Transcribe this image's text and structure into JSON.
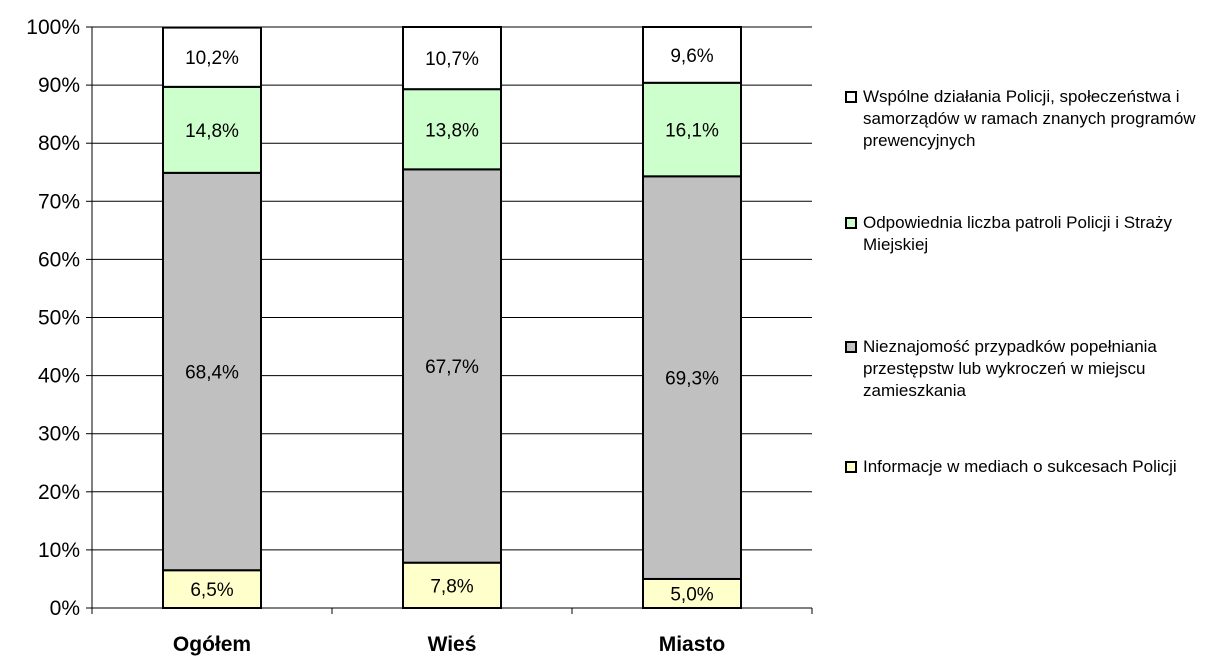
{
  "chart_data": {
    "type": "bar",
    "stacked": true,
    "categories": [
      "Ogółem",
      "Wieś",
      "Miasto"
    ],
    "series": [
      {
        "name": "Informacje w mediach o sukcesach Policji",
        "color": "#ffffcc",
        "values": [
          6.5,
          7.8,
          5.0
        ],
        "labels": [
          "6,5%",
          "7,8%",
          "5,0%"
        ]
      },
      {
        "name": "Nieznajomość przypadków popełniania przestępstw lub wykroczeń w miejscu zamieszkania",
        "color": "#c0c0c0",
        "values": [
          68.4,
          67.7,
          69.3
        ],
        "labels": [
          "68,4%",
          "67,7%",
          "69,3%"
        ]
      },
      {
        "name": "Odpowiednia liczba patroli Policji i Straży Miejskiej",
        "color": "#ccffcc",
        "values": [
          14.8,
          13.8,
          16.1
        ],
        "labels": [
          "14,8%",
          "13,8%",
          "16,1%"
        ]
      },
      {
        "name": "Wspólne działania Policji, społeczeństwa i samorządów w ramach znanych programów prewencyjnych",
        "color": "#ffffff",
        "values": [
          10.2,
          10.7,
          9.6
        ],
        "labels": [
          "10,2%",
          "10,7%",
          "9,6%"
        ]
      }
    ],
    "y_ticks": [
      "0%",
      "10%",
      "20%",
      "30%",
      "40%",
      "50%",
      "60%",
      "70%",
      "80%",
      "90%",
      "100%"
    ],
    "ylim": [
      0,
      100
    ],
    "grid": true,
    "legend_position": "right",
    "legend_order": [
      3,
      2,
      1,
      0
    ]
  }
}
